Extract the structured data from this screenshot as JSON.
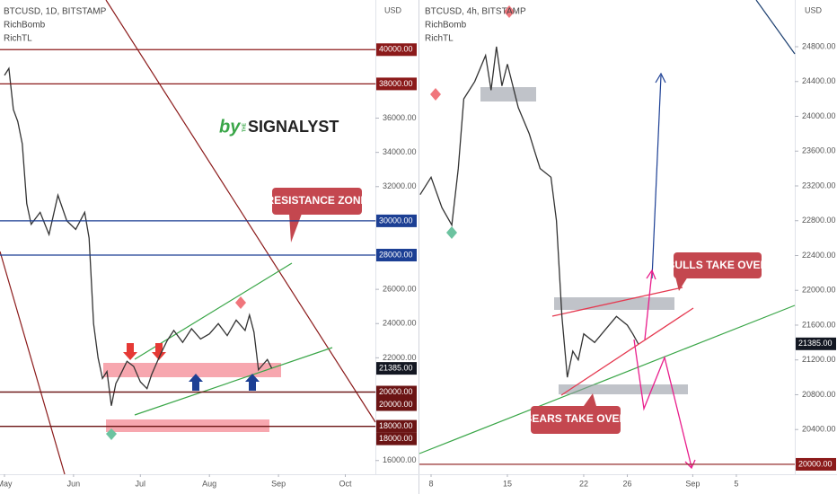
{
  "chart_data": [
    {
      "type": "line",
      "title": "BTCUSD, 1D, BITSTAMP",
      "indicators": [
        "RichBomb",
        "RichTL"
      ],
      "y_unit": "USD",
      "color": "#333333",
      "x": [
        0,
        2,
        4,
        6,
        8,
        10,
        12,
        16,
        20,
        24,
        28,
        32,
        36,
        38,
        40,
        42,
        44,
        46,
        48,
        50,
        52,
        55,
        58,
        61,
        64,
        66,
        70,
        73,
        76,
        80,
        84,
        88,
        92,
        96,
        100,
        104,
        108,
        110,
        112,
        114,
        116,
        118,
        120
      ],
      "values": [
        38500,
        38900,
        36500,
        35800,
        34500,
        31000,
        29800,
        30500,
        29200,
        31500,
        30000,
        29500,
        30500,
        29000,
        24000,
        22000,
        20800,
        21200,
        19200,
        20500,
        21000,
        21800,
        21500,
        20600,
        20200,
        21000,
        22200,
        23000,
        23600,
        22900,
        23700,
        23100,
        23400,
        24000,
        23300,
        24200,
        23600,
        24500,
        23500,
        21300,
        21600,
        21900,
        21385
      ],
      "xlim": [
        -2,
        166.5
      ],
      "xticks": [
        {
          "value": 0,
          "label": "May"
        },
        {
          "value": 31,
          "label": "Jun"
        },
        {
          "value": 61,
          "label": "Jul"
        },
        {
          "value": 92,
          "label": "Aug"
        },
        {
          "value": 123,
          "label": "Sep"
        },
        {
          "value": 153,
          "label": "Oct"
        }
      ],
      "ylim": [
        15200,
        42900
      ],
      "yticks": [
        {
          "value": 16000,
          "label": "16000.00"
        },
        {
          "value": 18000,
          "label": "18000.00"
        },
        {
          "value": 20000,
          "label": "20000.00"
        },
        {
          "value": 22000,
          "label": "22000.00"
        },
        {
          "value": 24000,
          "label": "24000.00"
        },
        {
          "value": 26000,
          "label": "26000.00"
        },
        {
          "value": 28000,
          "label": "28000.00"
        },
        {
          "value": 30000,
          "label": "30000.00"
        },
        {
          "value": 32000,
          "label": "32000.00"
        },
        {
          "value": 34000,
          "label": "34000.00"
        },
        {
          "value": 36000,
          "label": "36000.00"
        },
        {
          "value": 38000,
          "label": "38000.00"
        },
        {
          "value": 40000,
          "label": "40000.00"
        }
      ],
      "levels": [
        {
          "value": 40000,
          "label": "40000.00",
          "color": "#8b1a1a"
        },
        {
          "value": 38000,
          "label": "38000.00",
          "color": "#8b1a1a"
        },
        {
          "value": 30000,
          "label": "30000.00",
          "color": "#1c3f94"
        },
        {
          "value": 28000,
          "label": "28000.00",
          "color": "#1c3f94"
        },
        {
          "value": 20000,
          "label": "20000.00",
          "color": "#6b1414"
        },
        {
          "value": 20000,
          "label": "20000.00",
          "color": "#6b1414"
        },
        {
          "value": 18000,
          "label": "18000.00",
          "color": "#6b1414"
        },
        {
          "value": 18000,
          "label": "18000.00",
          "color": "#6b1414"
        }
      ],
      "last_price": {
        "value": 21385,
        "label": "21385.00"
      },
      "annotations": [
        "RESISTANCE ZONE"
      ],
      "watermark": {
        "prefix": "by",
        "small": "THE",
        "brand": "SIGNALYST"
      }
    },
    {
      "type": "line",
      "title": "BTCUSD, 4h, BITSTAMP",
      "indicators": [
        "RichBomb",
        "RichTL"
      ],
      "y_unit": "USD",
      "color": "#333333",
      "x": [
        7,
        8,
        9,
        9.9,
        10.5,
        11,
        12,
        13,
        13.5,
        14,
        14.5,
        15,
        16,
        17,
        17.5,
        18,
        19,
        19.5,
        20,
        20.5,
        21,
        21.5,
        22,
        23,
        24,
        25,
        26,
        26.5,
        27
      ],
      "values": [
        23100,
        23300,
        22950,
        22750,
        23400,
        24200,
        24400,
        24700,
        24300,
        24800,
        24350,
        24600,
        24100,
        23800,
        23600,
        23400,
        23300,
        22800,
        21700,
        21000,
        21300,
        21200,
        21500,
        21400,
        21550,
        21700,
        21600,
        21500,
        21385
      ],
      "xlim": [
        6.93,
        41.36
      ],
      "xticks": [
        8,
        15,
        22,
        26,
        {
          "value": 32,
          "label": "Sep"
        },
        {
          "value": 36,
          "label": "5"
        }
      ],
      "ylim": [
        19886,
        25337
      ],
      "yticks": [
        {
          "value": 20400,
          "label": "20400.00"
        },
        {
          "value": 20800,
          "label": "20800.00"
        },
        {
          "value": 21200,
          "label": "21200.00"
        },
        {
          "value": 21600,
          "label": "21600.00"
        },
        {
          "value": 22000,
          "label": "22000.00"
        },
        {
          "value": 22400,
          "label": "22400.00"
        },
        {
          "value": 22800,
          "label": "22800.00"
        },
        {
          "value": 23200,
          "label": "23200.00"
        },
        {
          "value": 23600,
          "label": "23600.00"
        },
        {
          "value": 24000,
          "label": "24000.00"
        },
        {
          "value": 24400,
          "label": "24400.00"
        },
        {
          "value": 24800,
          "label": "24800.00"
        }
      ],
      "levels": [
        {
          "value": 20000,
          "label": "20000.00",
          "color": "#8b1a1a"
        }
      ],
      "last_price": {
        "value": 21385,
        "label": "21385.00"
      },
      "annotations": [
        "BULLS TAKE OVER",
        "BEARS TAKE OVER"
      ]
    }
  ]
}
